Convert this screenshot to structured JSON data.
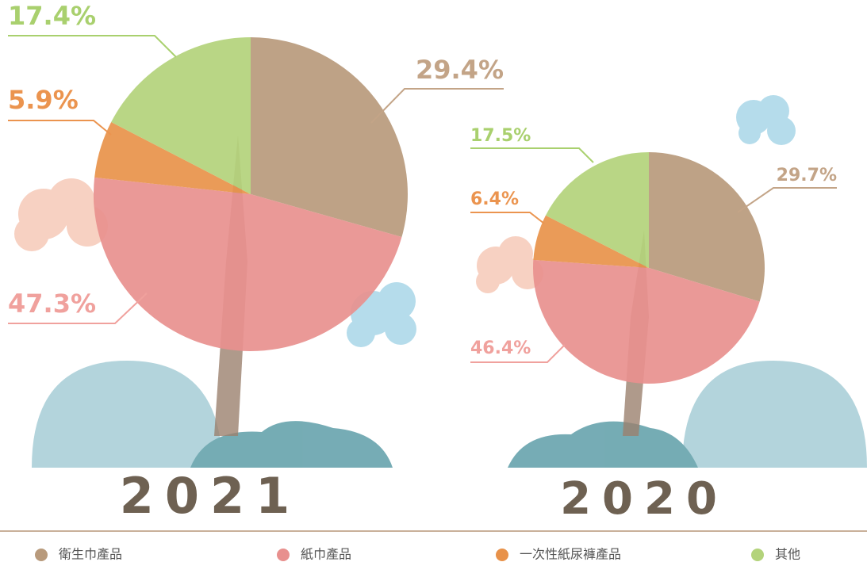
{
  "chart_data": {
    "type": "pie",
    "categories": [
      "衛生巾產品",
      "紙巾產品",
      "一次性紙尿褲產品",
      "其他"
    ],
    "colors": [
      "#b89a7c",
      "#e8908e",
      "#e8924a",
      "#b3d37b"
    ],
    "label_colors": [
      "#c3a487",
      "#f0a19d",
      "#eb944f",
      "#a9d06e"
    ],
    "series": [
      {
        "name": "2021",
        "values": [
          29.4,
          47.3,
          5.9,
          17.4
        ],
        "value_labels": [
          "29.4%",
          "47.3%",
          "5.9%",
          "17.4%"
        ]
      },
      {
        "name": "2020",
        "values": [
          29.7,
          46.4,
          6.4,
          17.5
        ],
        "value_labels": [
          "29.7%",
          "46.4%",
          "6.4%",
          "17.5%"
        ]
      }
    ]
  }
}
